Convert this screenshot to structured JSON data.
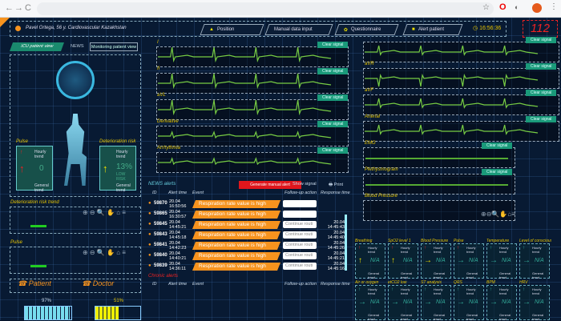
{
  "browser": {
    "back": "←",
    "forward": "→",
    "reload": "C",
    "url": ""
  },
  "header": {
    "patient": "Pavel Ortega, 56 y. Cardiovascular Kazakhstan",
    "buttons": [
      "Position",
      "Manual data input",
      "Questionnaire",
      "Alert patient"
    ],
    "clock": "16:56:36",
    "emergency": "112"
  },
  "left": {
    "tab_icu": "ICU patient view",
    "tab_news": "NEWS",
    "tab_monitoring": "Monitoring patient view",
    "pulse_label": "Pulse",
    "risk_label": "Deterioration risk",
    "hourly": "Hourly trend",
    "general": "General trend",
    "pulse_value": "0",
    "risk_value": "13%",
    "risk_sub": "LOW RISK",
    "chart1": "Deterioration risk trend",
    "chart2": "Pulse",
    "patient_btn": "Patient",
    "doctor_btn": "Doctor",
    "battery1": "97%",
    "battery2": "51%",
    "battery1_level": 0.97,
    "battery2_level": 0.51
  },
  "ecg_mid": {
    "leads": [
      "I",
      "II",
      "aVL",
      "Derivative",
      "Arrhythmia"
    ],
    "clear": "Clear signal"
  },
  "ecg_right": {
    "leads": [
      "",
      "aVR",
      "aVF",
      "Arterial",
      "EMG",
      "Plethysmogram",
      "Blood Pressure"
    ],
    "clear": "Clear signal"
  },
  "alerts": {
    "title": "NEWS alerts",
    "manual_btn": "Generate manual alert",
    "signal_btn": "Show signal",
    "print_btn": "Print",
    "columns": [
      "ID",
      "Alert time",
      "Event",
      "Follow-up action",
      "Response time"
    ],
    "rows": [
      {
        "id": "59870",
        "time": "20.04 16:50:56",
        "event": "Respiration rate value is high",
        "action": "",
        "response": ""
      },
      {
        "id": "59865",
        "time": "20.04 16:30:57",
        "event": "Respiration rate value is high",
        "action": "",
        "response": ""
      },
      {
        "id": "59845",
        "time": "20.04 14:45:21",
        "event": "Respiration rate value is high",
        "action": "Continue routi",
        "response": "20.04 14:45:43"
      },
      {
        "id": "59843",
        "time": "20.04 14:45:18",
        "event": "Respiration rate value is high",
        "action": "Continue routi",
        "response": "20.04 14:45:40"
      },
      {
        "id": "59841",
        "time": "20.04 14:42:23",
        "event": "Respiration rate value is high",
        "action": "Continue routi",
        "response": "20.04 14:45:26"
      },
      {
        "id": "59840",
        "time": "20.04 14:40:21",
        "event": "Respiration rate value is high",
        "action": "Continue routi",
        "response": "20.04 14:45:21"
      },
      {
        "id": "59839",
        "time": "20.04 14:36:11",
        "event": "Respiration rate value is high",
        "action": "Continue routi",
        "response": "20.04 14:45:16"
      }
    ],
    "chronic_title": "Chronic alerts"
  },
  "tiles": [
    {
      "label": "Breathing",
      "arrow": "up",
      "color": "#f0e000"
    },
    {
      "label": "SpO2 level 1",
      "arrow": "up",
      "color": "#f0e000"
    },
    {
      "label": "Blood Pressure",
      "arrow": "right",
      "color": "#f0e000"
    },
    {
      "label": "Pulse",
      "arrow": "right",
      "color": "#3a9"
    },
    {
      "label": "Temperature",
      "arrow": "right",
      "color": "#3a9"
    },
    {
      "label": "Level of consciousness",
      "arrow": "right",
      "color": "#3a9"
    },
    {
      "label": "Air or oxygen",
      "arrow": "right",
      "color": "#3a9"
    },
    {
      "label": "etCO2 low",
      "arrow": "right",
      "color": "#3a9"
    },
    {
      "label": "ST analysis",
      "arrow": "right",
      "color": "#3a9"
    },
    {
      "label": "QRS",
      "arrow": "right",
      "color": "#3a9"
    },
    {
      "label": "BPM",
      "arrow": "right",
      "color": "#3a9"
    },
    {
      "label": "HRV",
      "arrow": "right",
      "color": "#3a9"
    }
  ],
  "tile_value": "N/A",
  "tile_hourly": "Hourly trend",
  "tile_general": "General trend"
}
